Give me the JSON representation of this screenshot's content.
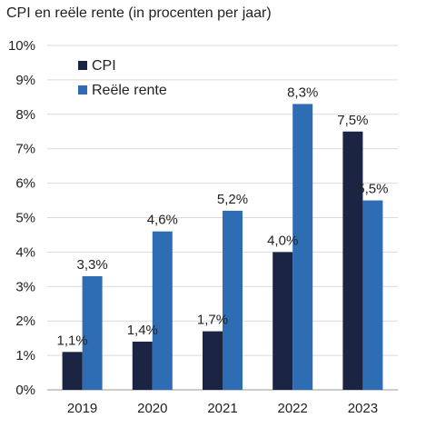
{
  "chart_data": {
    "type": "bar",
    "title": "CPI en reële rente (in procenten per jaar)",
    "categories": [
      "2019",
      "2020",
      "2021",
      "2022",
      "2023"
    ],
    "series": [
      {
        "name": "CPI",
        "values": [
          1.1,
          1.4,
          1.7,
          4.0,
          7.5
        ],
        "labels": [
          "1,1%",
          "1,4%",
          "1,7%",
          "4,0%",
          "7,5%"
        ],
        "color": "#1c2443"
      },
      {
        "name": "Reële rente",
        "values": [
          3.3,
          4.6,
          5.2,
          8.3,
          5.5
        ],
        "labels": [
          "3,3%",
          "4,6%",
          "5,2%",
          "8,3%",
          "5,5%"
        ],
        "color": "#2e6db4"
      }
    ],
    "ylim": [
      0,
      10
    ],
    "yticks": [
      0,
      1,
      2,
      3,
      4,
      5,
      6,
      7,
      8,
      9,
      10
    ],
    "ytick_labels": [
      "0%",
      "1%",
      "2%",
      "3%",
      "4%",
      "5%",
      "6%",
      "7%",
      "8%",
      "9%",
      "10%"
    ],
    "grid": true,
    "legend_position": "top-left"
  }
}
